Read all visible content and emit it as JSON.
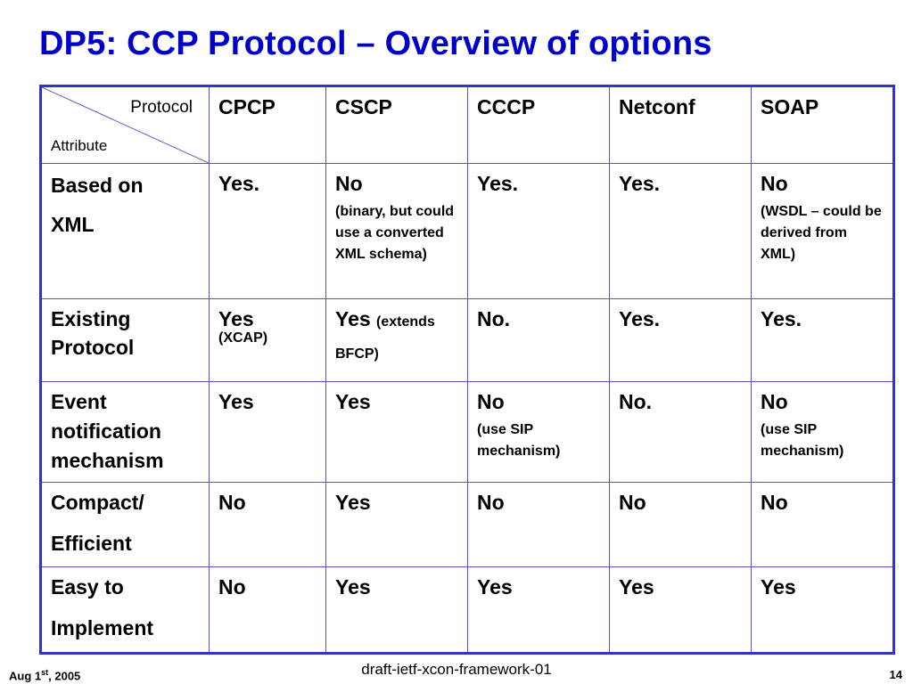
{
  "slide": {
    "title": "DP5: CCP Protocol – Overview of options"
  },
  "table": {
    "corner_top": "Protocol",
    "corner_bottom": "Attribute",
    "columns": [
      "CPCP",
      "CSCP",
      "CCCP",
      "Netconf",
      "SOAP"
    ],
    "rows": [
      {
        "attr_lines": [
          "Based on",
          "XML"
        ],
        "cells": [
          {
            "main": "Yes.",
            "note": ""
          },
          {
            "main": "No",
            "note": "(binary, but could use a converted XML schema)"
          },
          {
            "main": "Yes.",
            "note": ""
          },
          {
            "main": "Yes.",
            "note": ""
          },
          {
            "main": "No",
            "note": "(WSDL – could be derived from XML)"
          }
        ]
      },
      {
        "attr_lines": [
          "Existing Protocol"
        ],
        "cells": [
          {
            "main": "Yes",
            "note": "(XCAP)"
          },
          {
            "main": "Yes",
            "note": "(extends BFCP)"
          },
          {
            "main": "No.",
            "note": ""
          },
          {
            "main": "Yes.",
            "note": ""
          },
          {
            "main": "Yes.",
            "note": ""
          }
        ]
      },
      {
        "attr_lines": [
          "Event notification mechanism"
        ],
        "cells": [
          {
            "main": "Yes",
            "note": ""
          },
          {
            "main": "Yes",
            "note": ""
          },
          {
            "main": "No",
            "note": "(use SIP mechanism)"
          },
          {
            "main": "No.",
            "note": ""
          },
          {
            "main": "No",
            "note": "(use SIP mechanism)"
          }
        ]
      },
      {
        "attr_lines": [
          "Compact/",
          "Efficient"
        ],
        "cells": [
          {
            "main": "No",
            "note": ""
          },
          {
            "main": "Yes",
            "note": ""
          },
          {
            "main": "No",
            "note": ""
          },
          {
            "main": "No",
            "note": ""
          },
          {
            "main": "No",
            "note": ""
          }
        ]
      },
      {
        "attr_lines": [
          "Easy to",
          "Implement"
        ],
        "cells": [
          {
            "main": "No",
            "note": ""
          },
          {
            "main": "Yes",
            "note": ""
          },
          {
            "main": "Yes",
            "note": ""
          },
          {
            "main": "Yes",
            "note": ""
          },
          {
            "main": "Yes",
            "note": ""
          }
        ]
      }
    ]
  },
  "footer": {
    "date_prefix": "Aug 1",
    "date_sup": "st",
    "date_suffix": ", 2005",
    "center": "draft-ietf-xcon-framework-01",
    "page": "14"
  },
  "colors": {
    "title": "#0000cc",
    "table_border": "#3333cc"
  }
}
